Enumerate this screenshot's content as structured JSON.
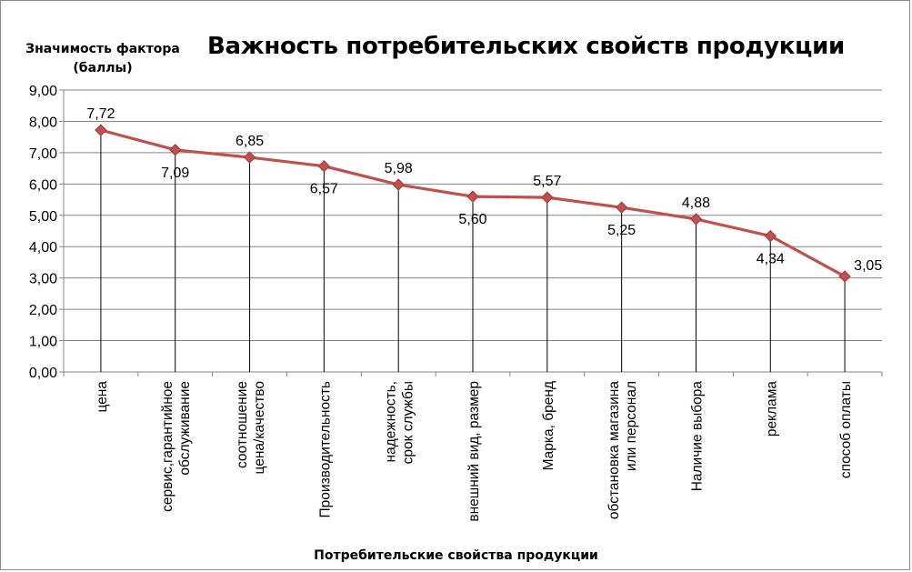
{
  "chart_data": {
    "type": "line",
    "title": "Важность потребительских свойств продукции",
    "ylabel": [
      "Значимость фактора",
      "(баллы)"
    ],
    "xlabel": "Потребительские свойства продукции",
    "ylim": [
      0,
      9
    ],
    "yticks": [
      "0,00",
      "1,00",
      "2,00",
      "3,00",
      "4,00",
      "5,00",
      "6,00",
      "7,00",
      "8,00",
      "9,00"
    ],
    "grid": true,
    "legend": "none",
    "categories": [
      [
        "цена"
      ],
      [
        "сервис,гарантийное",
        "обслуживание"
      ],
      [
        "соотношение",
        "цена/качество"
      ],
      [
        "Производительность"
      ],
      [
        "надежность,",
        "срок службы"
      ],
      [
        "внешний вид, размер"
      ],
      [
        "Марка, бренд"
      ],
      [
        "обстановка магазина",
        "или персонал"
      ],
      [
        "Наличие выбора"
      ],
      [
        "реклама"
      ],
      [
        "способ оплаты"
      ]
    ],
    "values": [
      7.72,
      7.09,
      6.85,
      6.57,
      5.98,
      5.6,
      5.57,
      5.25,
      4.88,
      4.34,
      3.05
    ],
    "data_labels": [
      "7,72",
      "7,09",
      "6,85",
      "6,57",
      "5,98",
      "5,60",
      "5,57",
      "5,25",
      "4,88",
      "4,34",
      "3,05"
    ],
    "label_position": [
      "above",
      "below",
      "above",
      "below",
      "above",
      "below",
      "above",
      "below",
      "above",
      "below",
      "right"
    ],
    "colors": {
      "line": "#c0504d",
      "marker": "#c0504d",
      "grid": "#868686",
      "axis": "#868686",
      "drop": "#000000"
    }
  }
}
